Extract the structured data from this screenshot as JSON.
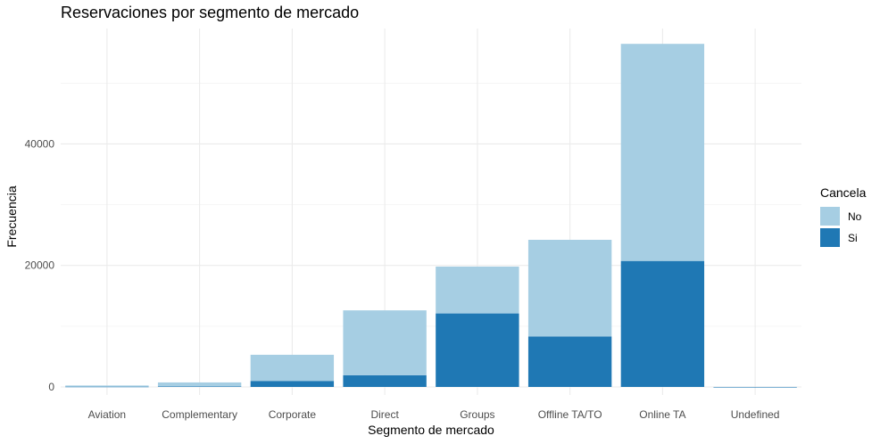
{
  "chart_data": {
    "type": "bar",
    "stacked": true,
    "title": "Reservaciones por segmento de mercado",
    "xlabel": "Segmento de mercado",
    "ylabel": "Frecuencia",
    "categories": [
      "Aviation",
      "Complementary",
      "Corporate",
      "Direct",
      "Groups",
      "Offline TA/TO",
      "Online TA",
      "Undefined"
    ],
    "series": [
      {
        "name": "Si",
        "color": "#1f78b4",
        "values": [
          52,
          97,
          992,
          1934,
          12097,
          8311,
          20739,
          2
        ]
      },
      {
        "name": "No",
        "color": "#a6cee3",
        "values": [
          185,
          646,
          4303,
          10672,
          7714,
          15908,
          35738,
          0
        ]
      }
    ],
    "ylim": [
      0,
      59000
    ],
    "yticks": [
      0,
      20000,
      40000
    ],
    "ytick_labels": [
      "0",
      "20000",
      "40000"
    ],
    "grid": true,
    "legend": {
      "title": "Cancela",
      "position": "right",
      "entries": [
        "No",
        "Si"
      ]
    }
  }
}
